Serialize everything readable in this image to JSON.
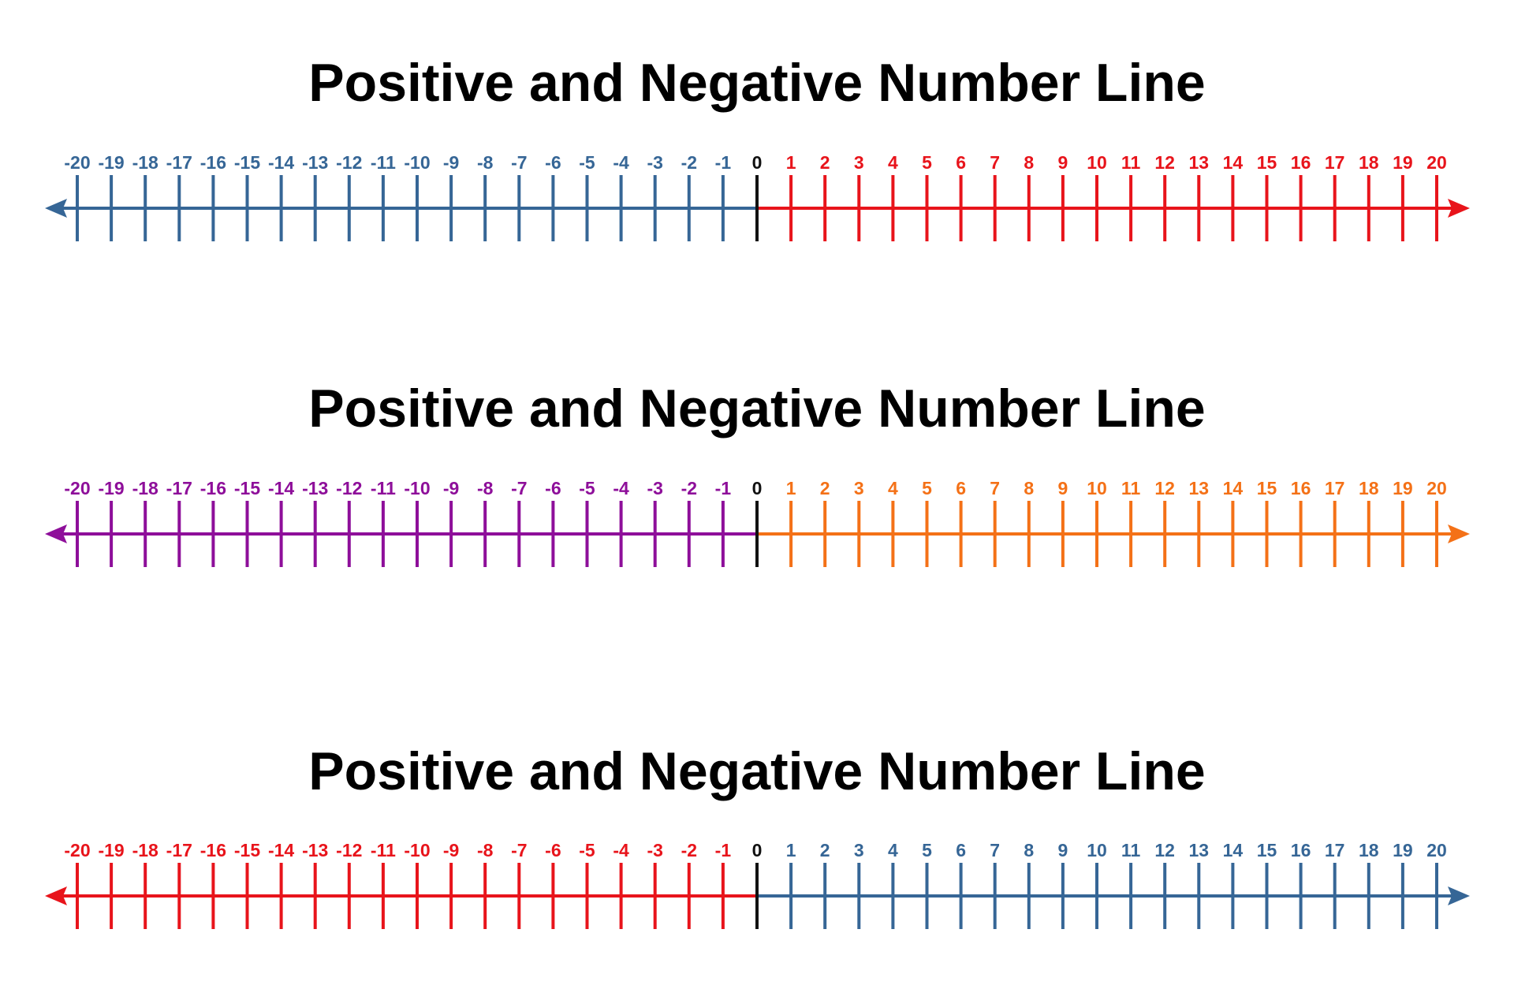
{
  "number_lines": [
    {
      "title": "Positive and Negative Number Line",
      "min": -20,
      "max": 20,
      "negative_color": "#366696",
      "positive_color": "#e8141b",
      "zero_color": "#111111"
    },
    {
      "title": "Positive and Negative Number Line",
      "min": -20,
      "max": 20,
      "negative_color": "#8e0f9a",
      "positive_color": "#f47117",
      "zero_color": "#111111"
    },
    {
      "title": "Positive and Negative Number Line",
      "min": -20,
      "max": 20,
      "negative_color": "#e8141b",
      "positive_color": "#366696",
      "zero_color": "#111111"
    }
  ]
}
